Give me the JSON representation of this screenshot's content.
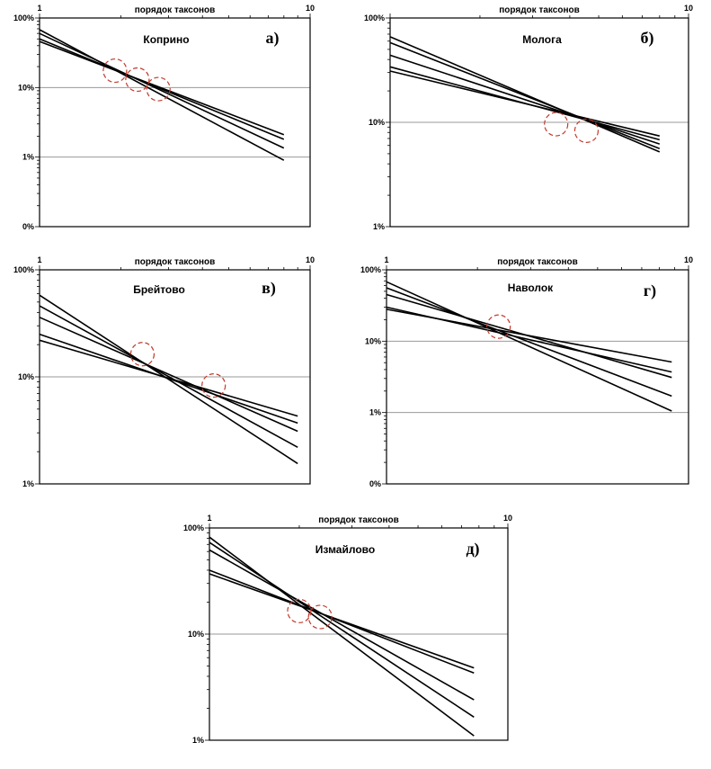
{
  "colors": {
    "lines": "#000000",
    "grid": "#9a9a9a",
    "highlight": "#c0392b"
  },
  "chart_data": [
    {
      "type": "line",
      "title": "Коприно",
      "panel_letter": "а)",
      "xlabel": "порядок таксонов",
      "x_scale": "log",
      "y_scale": "log",
      "xlim": [
        1,
        10
      ],
      "x_ticks": [
        "1",
        "10"
      ],
      "y_ticks": [
        {
          "value": 1,
          "label": "100%"
        },
        {
          "value": 0.1,
          "label": "10%"
        },
        {
          "value": 0.01,
          "label": "1%"
        },
        {
          "value": 0.001,
          "label": "0%"
        }
      ],
      "ylim": [
        0.001,
        1
      ],
      "grid": "horizontal",
      "series": [
        {
          "x": [
            1,
            8
          ],
          "y": [
            0.68,
            0.009
          ]
        },
        {
          "x": [
            1,
            8
          ],
          "y": [
            0.6,
            0.0135
          ]
        },
        {
          "x": [
            1,
            8
          ],
          "y": [
            0.5,
            0.018
          ]
        },
        {
          "x": [
            1,
            8
          ],
          "y": [
            0.46,
            0.021
          ]
        }
      ],
      "highlights": [
        {
          "x": 1.9,
          "y": 0.175
        },
        {
          "x": 2.3,
          "y": 0.13
        },
        {
          "x": 2.75,
          "y": 0.095
        }
      ]
    },
    {
      "type": "line",
      "title": "Молога",
      "panel_letter": "б)",
      "xlabel": "порядок таксонов",
      "x_scale": "log",
      "y_scale": "log",
      "xlim": [
        1,
        10
      ],
      "x_ticks": [
        "",
        "10"
      ],
      "y_ticks": [
        {
          "value": 1,
          "label": "100%"
        },
        {
          "value": 0.1,
          "label": "10%"
        },
        {
          "value": 0.01,
          "label": "1%"
        }
      ],
      "ylim": [
        0.01,
        1
      ],
      "grid": "horizontal",
      "series": [
        {
          "x": [
            1,
            8
          ],
          "y": [
            0.66,
            0.052
          ]
        },
        {
          "x": [
            1,
            8
          ],
          "y": [
            0.58,
            0.056
          ]
        },
        {
          "x": [
            1,
            8
          ],
          "y": [
            0.44,
            0.062
          ]
        },
        {
          "x": [
            1,
            8
          ],
          "y": [
            0.34,
            0.068
          ]
        },
        {
          "x": [
            1,
            8
          ],
          "y": [
            0.31,
            0.074
          ]
        }
      ],
      "highlights": [
        {
          "x": 3.6,
          "y": 0.096
        },
        {
          "x": 4.55,
          "y": 0.083
        }
      ]
    },
    {
      "type": "line",
      "title": "Брейтово",
      "panel_letter": "в)",
      "xlabel": "порядок таксонов",
      "x_scale": "log",
      "y_scale": "log",
      "xlim": [
        1,
        10
      ],
      "x_ticks": [
        "1",
        "10"
      ],
      "y_ticks": [
        {
          "value": 1,
          "label": "100%"
        },
        {
          "value": 0.1,
          "label": "10%"
        },
        {
          "value": 0.01,
          "label": "1%"
        }
      ],
      "ylim": [
        0.01,
        1
      ],
      "grid": "horizontal",
      "series": [
        {
          "x": [
            1,
            9
          ],
          "y": [
            0.58,
            0.0155
          ]
        },
        {
          "x": [
            1,
            9
          ],
          "y": [
            0.46,
            0.022
          ]
        },
        {
          "x": [
            1,
            9
          ],
          "y": [
            0.36,
            0.031
          ]
        },
        {
          "x": [
            1,
            9
          ],
          "y": [
            0.25,
            0.037
          ]
        },
        {
          "x": [
            1,
            9
          ],
          "y": [
            0.22,
            0.043
          ]
        }
      ],
      "highlights": [
        {
          "x": 2.4,
          "y": 0.163
        },
        {
          "x": 4.4,
          "y": 0.083
        }
      ]
    },
    {
      "type": "line",
      "title": "Наволок",
      "panel_letter": "г)",
      "xlabel": "порядок таксонов",
      "x_scale": "log",
      "y_scale": "log",
      "xlim": [
        1,
        10
      ],
      "x_ticks": [
        "1",
        "10"
      ],
      "y_ticks": [
        {
          "value": 1,
          "label": "100%"
        },
        {
          "value": 0.1,
          "label": "10%"
        },
        {
          "value": 0.01,
          "label": "1%"
        },
        {
          "value": 0.001,
          "label": "0%"
        }
      ],
      "ylim": [
        0.001,
        1
      ],
      "grid": "horizontal",
      "series": [
        {
          "x": [
            1,
            8.8
          ],
          "y": [
            0.68,
            0.0105
          ]
        },
        {
          "x": [
            1,
            8.8
          ],
          "y": [
            0.56,
            0.017
          ]
        },
        {
          "x": [
            1,
            8.8
          ],
          "y": [
            0.45,
            0.031
          ]
        },
        {
          "x": [
            1,
            8.8
          ],
          "y": [
            0.3,
            0.037
          ]
        },
        {
          "x": [
            1,
            8.8
          ],
          "y": [
            0.28,
            0.051
          ]
        }
      ],
      "highlights": [
        {
          "x": 2.35,
          "y": 0.16
        }
      ]
    },
    {
      "type": "line",
      "title": "Измайлово",
      "panel_letter": "д)",
      "xlabel": "порядок таксонов",
      "x_scale": "log",
      "y_scale": "log",
      "xlim": [
        1,
        10
      ],
      "x_ticks": [
        "1",
        "10"
      ],
      "y_ticks": [
        {
          "value": 1,
          "label": "100%"
        },
        {
          "value": 0.1,
          "label": "10%"
        },
        {
          "value": 0.01,
          "label": "1%"
        }
      ],
      "ylim": [
        0.01,
        1
      ],
      "grid": "horizontal",
      "series": [
        {
          "x": [
            1,
            7.7
          ],
          "y": [
            0.82,
            0.011
          ]
        },
        {
          "x": [
            1,
            7.7
          ],
          "y": [
            0.73,
            0.0165
          ]
        },
        {
          "x": [
            1,
            7.7
          ],
          "y": [
            0.62,
            0.024
          ]
        },
        {
          "x": [
            1,
            7.7
          ],
          "y": [
            0.4,
            0.043
          ]
        },
        {
          "x": [
            1,
            7.7
          ],
          "y": [
            0.37,
            0.048
          ]
        }
      ],
      "highlights": [
        {
          "x": 2.0,
          "y": 0.165
        },
        {
          "x": 2.35,
          "y": 0.145
        }
      ]
    }
  ]
}
